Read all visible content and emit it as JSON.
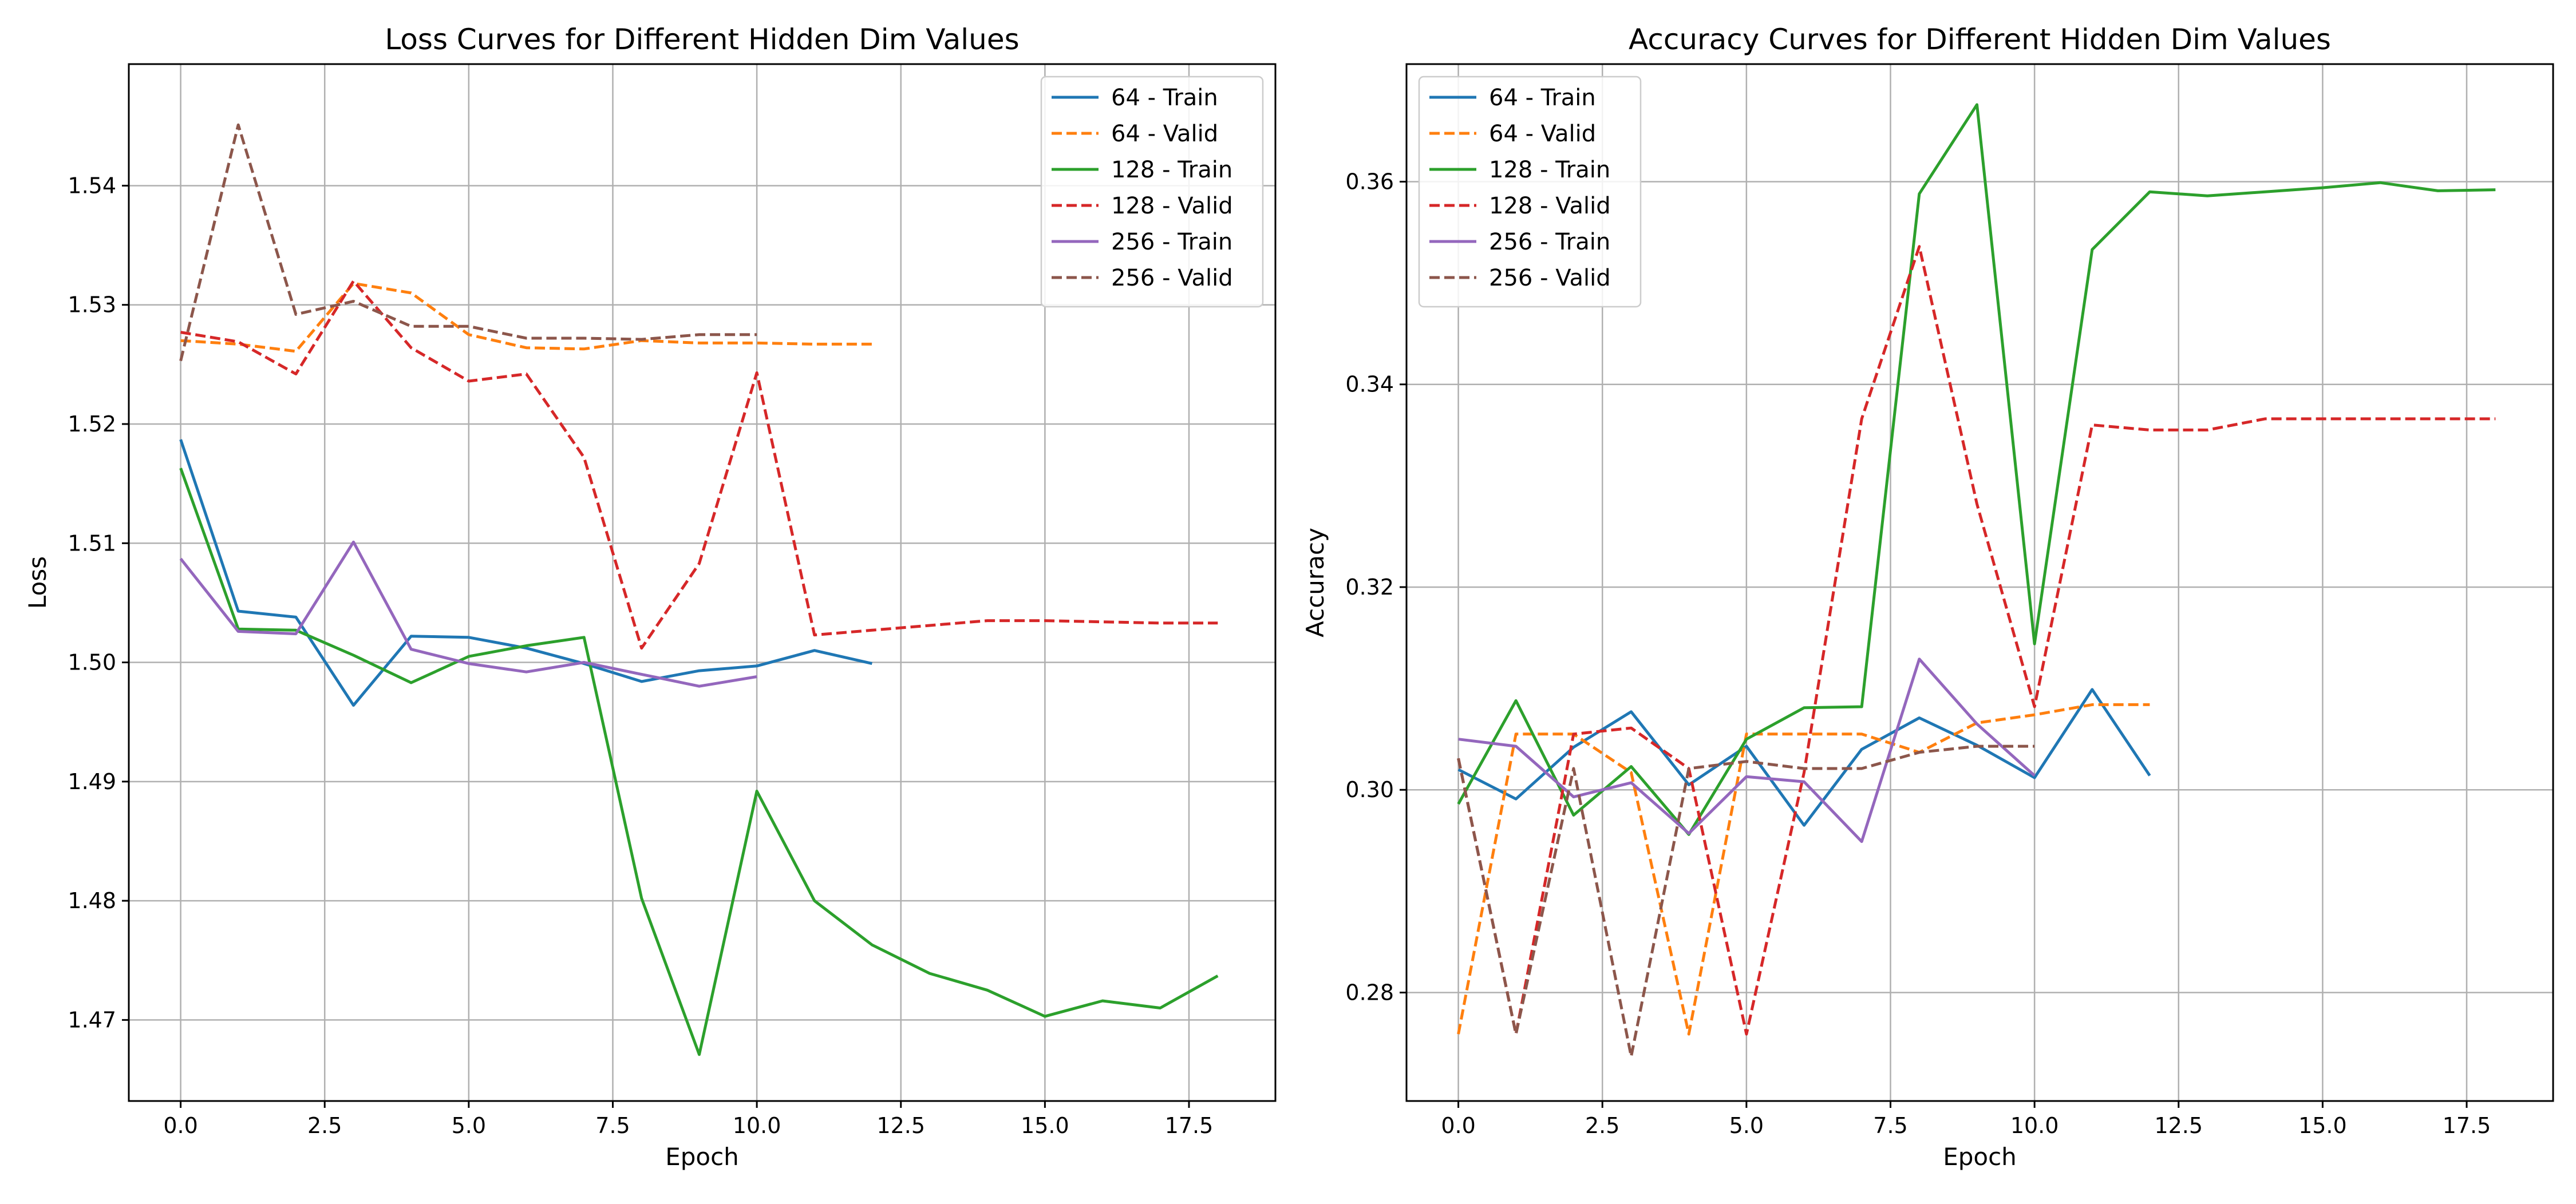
{
  "chart_data": [
    {
      "type": "line",
      "title": "Loss Curves for Different Hidden Dim Values",
      "xlabel": "Epoch",
      "ylabel": "Loss",
      "xlim": [
        -0.9,
        19.0
      ],
      "ylim": [
        1.4632,
        1.5502
      ],
      "xticks": [
        0.0,
        2.5,
        5.0,
        7.5,
        10.0,
        12.5,
        15.0,
        17.5
      ],
      "xtick_labels": [
        "0.0",
        "2.5",
        "5.0",
        "7.5",
        "10.0",
        "12.5",
        "15.0",
        "17.5"
      ],
      "yticks": [
        1.47,
        1.48,
        1.49,
        1.5,
        1.51,
        1.52,
        1.53,
        1.54
      ],
      "ytick_labels": [
        "1.47",
        "1.48",
        "1.49",
        "1.50",
        "1.51",
        "1.52",
        "1.53",
        "1.54"
      ],
      "grid": true,
      "legend_position": "top-right",
      "series": [
        {
          "name": "64 - Train",
          "color": "#1f77b4",
          "dash": "solid",
          "x": [
            0,
            1,
            2,
            3,
            4,
            5,
            6,
            7,
            8,
            9,
            10,
            11,
            12
          ],
          "values": [
            1.5187,
            1.5043,
            1.5038,
            1.4964,
            1.5022,
            1.5021,
            1.5012,
            1.4999,
            1.4984,
            1.4993,
            1.4997,
            1.501,
            1.4999
          ]
        },
        {
          "name": "64 - Valid",
          "color": "#ff7f0e",
          "dash": "dashed",
          "x": [
            0,
            1,
            2,
            3,
            4,
            5,
            6,
            7,
            8,
            9,
            10,
            11,
            12
          ],
          "values": [
            1.527,
            1.5267,
            1.5261,
            1.5318,
            1.531,
            1.5275,
            1.5264,
            1.5263,
            1.527,
            1.5268,
            1.5268,
            1.5267,
            1.5267
          ]
        },
        {
          "name": "128 - Train",
          "color": "#2ca02c",
          "dash": "solid",
          "x": [
            0,
            1,
            2,
            3,
            4,
            5,
            6,
            7,
            8,
            9,
            10,
            11,
            12,
            13,
            14,
            15,
            16,
            17,
            18
          ],
          "values": [
            1.5163,
            1.5028,
            1.5027,
            1.5006,
            1.4983,
            1.5005,
            1.5014,
            1.5021,
            1.4802,
            1.4671,
            1.4892,
            1.48,
            1.4763,
            1.4739,
            1.4725,
            1.4703,
            1.4716,
            1.471,
            1.4737
          ]
        },
        {
          "name": "128 - Valid",
          "color": "#d62728",
          "dash": "dashed",
          "x": [
            0,
            1,
            2,
            3,
            4,
            5,
            6,
            7,
            8,
            9,
            10,
            11,
            12,
            13,
            14,
            15,
            16,
            17,
            18
          ],
          "values": [
            1.5277,
            1.5269,
            1.5242,
            1.532,
            1.5264,
            1.5236,
            1.5242,
            1.5172,
            1.5012,
            1.5083,
            1.5243,
            1.5023,
            1.5027,
            1.5031,
            1.5035,
            1.5035,
            1.5034,
            1.5033,
            1.5033
          ]
        },
        {
          "name": "256 - Train",
          "color": "#9467bd",
          "dash": "solid",
          "x": [
            0,
            1,
            2,
            3,
            4,
            5,
            6,
            7,
            8,
            9,
            10
          ],
          "values": [
            1.5087,
            1.5026,
            1.5024,
            1.5101,
            1.5011,
            1.4999,
            1.4992,
            1.5,
            1.499,
            1.498,
            1.4988
          ]
        },
        {
          "name": "256 - Valid",
          "color": "#8c564b",
          "dash": "dashed",
          "x": [
            0,
            1,
            2,
            3,
            4,
            5,
            6,
            7,
            8,
            9,
            10
          ],
          "values": [
            1.5253,
            1.5451,
            1.5292,
            1.5303,
            1.5282,
            1.5282,
            1.5272,
            1.5272,
            1.5271,
            1.5275,
            1.5275
          ]
        }
      ]
    },
    {
      "type": "line",
      "title": "Accuracy Curves for Different Hidden Dim Values",
      "xlabel": "Epoch",
      "ylabel": "Accuracy",
      "xlim": [
        -0.9,
        19.0
      ],
      "ylim": [
        0.2693,
        0.3716
      ],
      "xticks": [
        0.0,
        2.5,
        5.0,
        7.5,
        10.0,
        12.5,
        15.0,
        17.5
      ],
      "xtick_labels": [
        "0.0",
        "2.5",
        "5.0",
        "7.5",
        "10.0",
        "12.5",
        "15.0",
        "17.5"
      ],
      "yticks": [
        0.28,
        0.3,
        0.32,
        0.34,
        0.36
      ],
      "ytick_labels": [
        "0.28",
        "0.30",
        "0.32",
        "0.34",
        "0.36"
      ],
      "grid": true,
      "legend_position": "top-left",
      "series": [
        {
          "name": "64 - Train",
          "color": "#1f77b4",
          "dash": "solid",
          "x": [
            0,
            1,
            2,
            3,
            4,
            5,
            6,
            7,
            8,
            9,
            10,
            11,
            12
          ],
          "values": [
            0.302,
            0.2991,
            0.3042,
            0.3077,
            0.3005,
            0.3043,
            0.2965,
            0.304,
            0.3071,
            0.3044,
            0.3012,
            0.3099,
            0.3014
          ]
        },
        {
          "name": "64 - Valid",
          "color": "#ff7f0e",
          "dash": "dashed",
          "x": [
            0,
            1,
            2,
            3,
            4,
            5,
            6,
            7,
            8,
            9,
            10,
            11,
            12
          ],
          "values": [
            0.2759,
            0.3055,
            0.3055,
            0.3017,
            0.2759,
            0.3055,
            0.3055,
            0.3055,
            0.3037,
            0.3066,
            0.3074,
            0.3084,
            0.3084
          ]
        },
        {
          "name": "128 - Train",
          "color": "#2ca02c",
          "dash": "solid",
          "x": [
            0,
            1,
            2,
            3,
            4,
            5,
            6,
            7,
            8,
            9,
            10,
            11,
            12,
            13,
            14,
            15,
            16,
            17,
            18
          ],
          "values": [
            0.2986,
            0.3088,
            0.2975,
            0.3023,
            0.2956,
            0.305,
            0.3081,
            0.3082,
            0.3588,
            0.3676,
            0.3144,
            0.3533,
            0.359,
            0.3586,
            0.359,
            0.3594,
            0.3599,
            0.3591,
            0.3592
          ]
        },
        {
          "name": "128 - Valid",
          "color": "#d62728",
          "dash": "dashed",
          "x": [
            0,
            1,
            2,
            3,
            4,
            5,
            6,
            7,
            8,
            9,
            10,
            11,
            12,
            13,
            14,
            15,
            16,
            17,
            18
          ],
          "values": [
            0.3031,
            0.2759,
            0.3055,
            0.3061,
            0.3021,
            0.2759,
            0.3017,
            0.3366,
            0.3536,
            0.3282,
            0.3082,
            0.336,
            0.3355,
            0.3355,
            0.3366,
            0.3366,
            0.3366,
            0.3366,
            0.3366
          ]
        },
        {
          "name": "256 - Train",
          "color": "#9467bd",
          "dash": "solid",
          "x": [
            0,
            1,
            2,
            3,
            4,
            5,
            6,
            7,
            8,
            9,
            10
          ],
          "values": [
            0.305,
            0.3043,
            0.2993,
            0.3007,
            0.2957,
            0.3013,
            0.3008,
            0.2949,
            0.3129,
            0.3065,
            0.3014
          ]
        },
        {
          "name": "256 - Valid",
          "color": "#8c564b",
          "dash": "dashed",
          "x": [
            0,
            1,
            2,
            3,
            4,
            5,
            6,
            7,
            8,
            9,
            10
          ],
          "values": [
            0.3031,
            0.2759,
            0.3021,
            0.2737,
            0.3021,
            0.3028,
            0.3021,
            0.3021,
            0.3037,
            0.3043,
            0.3043
          ]
        }
      ]
    }
  ]
}
